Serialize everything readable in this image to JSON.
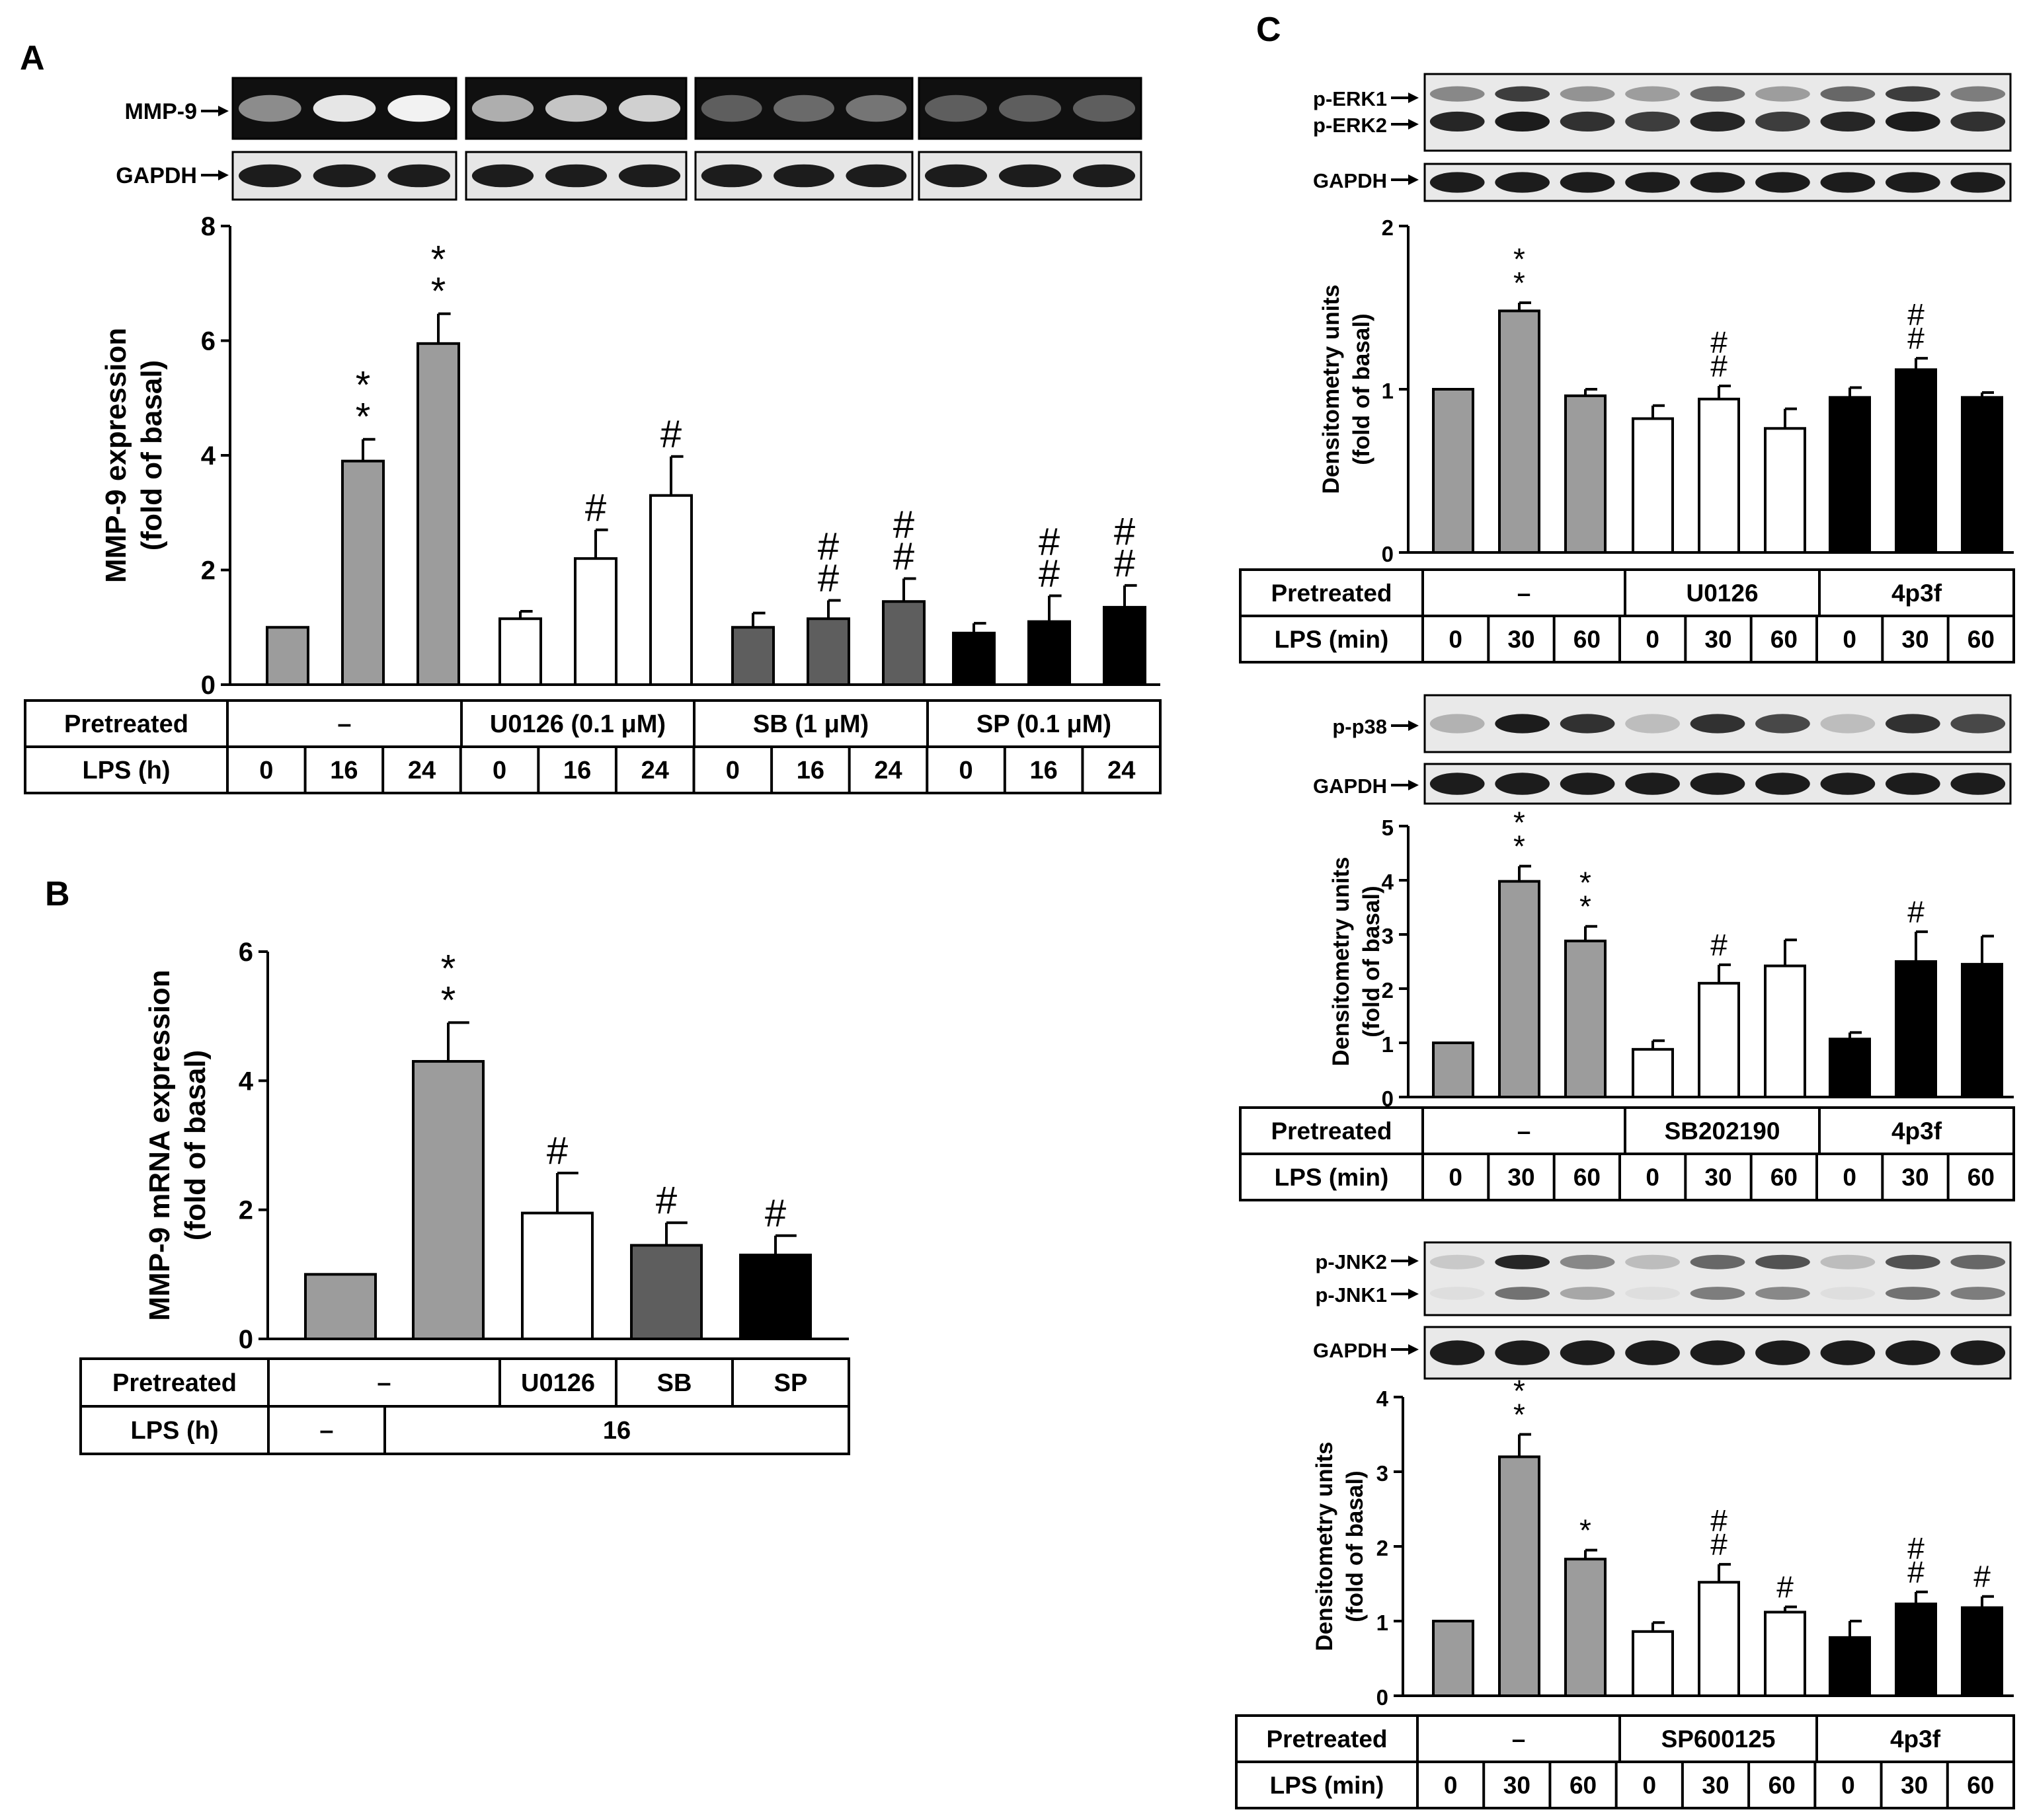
{
  "panels": {
    "A": {
      "letter": "A",
      "blot_labels": [
        "MMP-9",
        "GAPDH"
      ]
    },
    "B": {
      "letter": "B"
    },
    "C": {
      "letter": "C",
      "erk_blot_labels": [
        "p-ERK1",
        "p-ERK2",
        "GAPDH"
      ],
      "p38_blot_labels": [
        "p-p38",
        "GAPDH"
      ],
      "jnk_blot_labels": [
        "p-JNK2",
        "p-JNK1",
        "GAPDH"
      ]
    }
  },
  "colors": {
    "gray": "#9c9c9c",
    "dark_gray": "#5e5e5e",
    "white": "#ffffff",
    "black": "#000000"
  },
  "chart_data": [
    {
      "id": "A",
      "type": "bar",
      "ylabel": "MMP-9 expression",
      "ylabel2": "(fold of basal)",
      "ylim": [
        0,
        8
      ],
      "yticks": [
        0,
        2,
        4,
        6,
        8
      ],
      "values": [
        1.0,
        3.9,
        5.95,
        1.15,
        2.2,
        3.3,
        1.0,
        1.15,
        1.45,
        0.9,
        1.1,
        1.35
      ],
      "errors": [
        0,
        0.38,
        0.52,
        0.13,
        0.5,
        0.68,
        0.25,
        0.32,
        0.4,
        0.17,
        0.45,
        0.38
      ],
      "fills": [
        "gray",
        "gray",
        "gray",
        "white",
        "white",
        "white",
        "dark_gray",
        "dark_gray",
        "dark_gray",
        "black",
        "black",
        "black"
      ],
      "annotations": [
        "",
        "*\n*",
        "*\n*",
        "",
        "#",
        "#",
        "",
        "#\n#",
        "#\n#",
        "",
        "#\n#",
        "#\n#"
      ],
      "table": {
        "row1_label": "Pretreated",
        "groups": [
          "–",
          "U0126 (0.1 μM)",
          "SB  (1 μM)",
          "SP  (0.1 μM)"
        ],
        "row2_label": "LPS (h)",
        "lps": [
          "0",
          "16",
          "24",
          "0",
          "16",
          "24",
          "0",
          "16",
          "24",
          "0",
          "16",
          "24"
        ]
      }
    },
    {
      "id": "B",
      "type": "bar",
      "ylabel": "MMP-9 mRNA expression",
      "ylabel2": "(fold of basal)",
      "ylim": [
        0,
        6
      ],
      "yticks": [
        0,
        2,
        4,
        6
      ],
      "values": [
        1.0,
        4.3,
        1.95,
        1.45,
        1.3
      ],
      "errors": [
        0,
        0.6,
        0.62,
        0.35,
        0.3
      ],
      "fills": [
        "gray",
        "gray",
        "white",
        "dark_gray",
        "black"
      ],
      "annotations": [
        "",
        "*\n*",
        "#",
        "#",
        "#"
      ],
      "table": {
        "row1_label": "Pretreated",
        "groups": [
          "–",
          "U0126",
          "SB",
          "SP"
        ],
        "row2_label": "LPS (h)",
        "lps_groups": [
          "–",
          "16"
        ]
      }
    },
    {
      "id": "C-ERK",
      "type": "bar",
      "ylabel": "Densitometry units",
      "ylabel2": "(fold of basal)",
      "ylim": [
        0,
        2
      ],
      "yticks": [
        0,
        1,
        2
      ],
      "values": [
        1.0,
        1.48,
        0.96,
        0.82,
        0.94,
        0.76,
        0.95,
        1.12,
        0.95
      ],
      "errors": [
        0,
        0.05,
        0.04,
        0.08,
        0.08,
        0.12,
        0.06,
        0.07,
        0.03
      ],
      "fills": [
        "gray",
        "gray",
        "gray",
        "white",
        "white",
        "white",
        "black",
        "black",
        "black"
      ],
      "annotations": [
        "",
        "*\n*",
        "",
        "",
        "#\n#",
        "",
        "",
        "#\n#",
        ""
      ],
      "table": {
        "row1_label": "Pretreated",
        "groups": [
          "–",
          "U0126",
          "4p3f"
        ],
        "row2_label": "LPS (min)",
        "lps": [
          "0",
          "30",
          "60",
          "0",
          "30",
          "60",
          "0",
          "30",
          "60"
        ]
      }
    },
    {
      "id": "C-p38",
      "type": "bar",
      "ylabel": "Densitometry units",
      "ylabel2": "(fold of basal)",
      "ylim": [
        0,
        5
      ],
      "yticks": [
        0,
        1,
        2,
        3,
        4,
        5
      ],
      "values": [
        1.0,
        3.98,
        2.88,
        0.88,
        2.1,
        2.42,
        1.07,
        2.5,
        2.45
      ],
      "errors": [
        0,
        0.28,
        0.27,
        0.16,
        0.34,
        0.48,
        0.12,
        0.55,
        0.52
      ],
      "fills": [
        "gray",
        "gray",
        "gray",
        "white",
        "white",
        "white",
        "black",
        "black",
        "black"
      ],
      "annotations": [
        "",
        "*\n*",
        "*\n*",
        "",
        "#",
        "",
        "",
        "#",
        ""
      ],
      "table": {
        "row1_label": "Pretreated",
        "groups": [
          "–",
          "SB202190",
          "4p3f"
        ],
        "row2_label": "LPS (min)",
        "lps": [
          "0",
          "30",
          "60",
          "0",
          "30",
          "60",
          "0",
          "30",
          "60"
        ]
      }
    },
    {
      "id": "C-JNK",
      "type": "bar",
      "ylabel": "Densitometry units",
      "ylabel2": "(fold of basal)",
      "ylim": [
        0,
        4
      ],
      "yticks": [
        0,
        1,
        2,
        3,
        4
      ],
      "values": [
        1.0,
        3.2,
        1.83,
        0.86,
        1.52,
        1.12,
        0.78,
        1.23,
        1.18
      ],
      "errors": [
        0,
        0.3,
        0.12,
        0.12,
        0.24,
        0.07,
        0.22,
        0.16,
        0.15
      ],
      "fills": [
        "gray",
        "gray",
        "gray",
        "white",
        "white",
        "white",
        "black",
        "black",
        "black"
      ],
      "annotations": [
        "",
        "*\n*",
        "*",
        "",
        "#\n#",
        "#",
        "",
        "#\n#",
        "#"
      ],
      "table": {
        "row1_label": "Pretreated",
        "groups": [
          "–",
          "SP600125",
          "4p3f"
        ],
        "row2_label": "LPS (min)",
        "lps": [
          "0",
          "30",
          "60",
          "0",
          "30",
          "60",
          "0",
          "30",
          "60"
        ]
      }
    }
  ]
}
